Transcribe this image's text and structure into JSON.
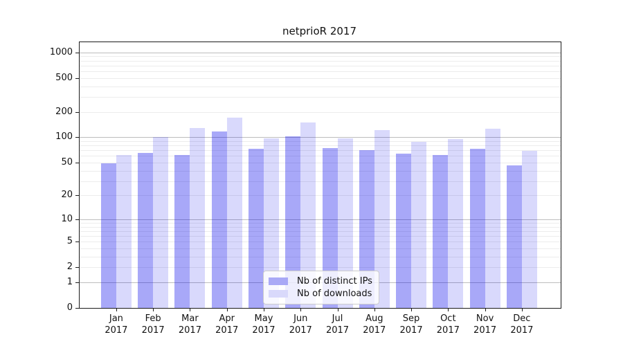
{
  "title": "netprioR 2017",
  "chart_data": {
    "type": "bar",
    "title": "netprioR 2017",
    "x_months": [
      "Jan",
      "Feb",
      "Mar",
      "Apr",
      "May",
      "Jun",
      "Jul",
      "Aug",
      "Sep",
      "Oct",
      "Nov",
      "Dec"
    ],
    "x_year": "2017",
    "series": [
      {
        "name": "Nb of distinct IPs",
        "fill": "rgba(0,0,235,0.34)",
        "solid": "#a9a9f6",
        "values": [
          49,
          65,
          62,
          118,
          73,
          102,
          75,
          70,
          64,
          62,
          73,
          46
        ]
      },
      {
        "name": "Nb of downloads",
        "fill": "rgba(0,0,235,0.15)",
        "solid": "#d9d9fb",
        "values": [
          61,
          101,
          128,
          171,
          97,
          150,
          97,
          122,
          88,
          96,
          126,
          69
        ]
      }
    ],
    "y_ticks": [
      0,
      1,
      2,
      5,
      10,
      20,
      50,
      100,
      200,
      500,
      1000
    ],
    "y_major_gridlines": [
      1,
      10,
      100,
      1000
    ],
    "y_scale": "log10(v+1)",
    "y_max": 1320,
    "legend_position": "lower center",
    "grid": true
  },
  "colors": {
    "major_grid": "#bdbdbd",
    "minor_grid": "#ececec",
    "axis": "#1a1a1a",
    "background": "#ffffff"
  }
}
